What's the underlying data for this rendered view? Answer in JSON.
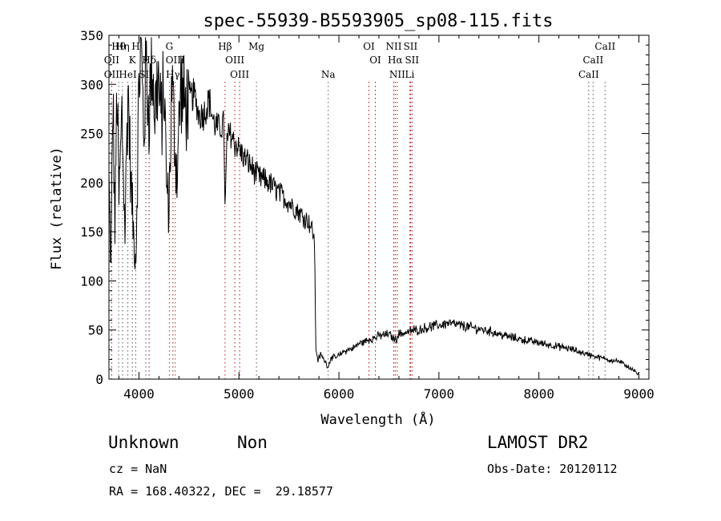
{
  "chart_data": {
    "type": "line",
    "title": "spec-55939-B5593905_sp08-115.fits",
    "xlabel": "Wavelength (Å)",
    "ylabel": "Flux (relative)",
    "xlim": [
      3700,
      9100
    ],
    "ylim": [
      0,
      350
    ],
    "xticks": [
      4000,
      5000,
      6000,
      7000,
      8000,
      9000
    ],
    "yticks": [
      0,
      50,
      100,
      150,
      200,
      250,
      300,
      350
    ],
    "grid": false,
    "spectrum_points": [
      [
        3700,
        200
      ],
      [
        3720,
        110
      ],
      [
        3740,
        290
      ],
      [
        3760,
        150
      ],
      [
        3780,
        300
      ],
      [
        3800,
        180
      ],
      [
        3830,
        270
      ],
      [
        3860,
        150
      ],
      [
        3890,
        300
      ],
      [
        3920,
        200
      ],
      [
        3950,
        140
      ],
      [
        3970,
        125
      ],
      [
        4000,
        300
      ],
      [
        4020,
        340
      ],
      [
        4050,
        250
      ],
      [
        4070,
        320
      ],
      [
        4100,
        270
      ],
      [
        4130,
        330
      ],
      [
        4160,
        270
      ],
      [
        4190,
        310
      ],
      [
        4220,
        260
      ],
      [
        4250,
        300
      ],
      [
        4280,
        190
      ],
      [
        4300,
        175
      ],
      [
        4330,
        300
      ],
      [
        4360,
        240
      ],
      [
        4380,
        210
      ],
      [
        4420,
        300
      ],
      [
        4460,
        275
      ],
      [
        4500,
        285
      ],
      [
        4550,
        290
      ],
      [
        4600,
        270
      ],
      [
        4650,
        270
      ],
      [
        4700,
        285
      ],
      [
        4750,
        260
      ],
      [
        4800,
        255
      ],
      [
        4850,
        260
      ],
      [
        4861,
        165
      ],
      [
        4880,
        245
      ],
      [
        4920,
        250
      ],
      [
        4960,
        240
      ],
      [
        5000,
        235
      ],
      [
        5050,
        225
      ],
      [
        5100,
        220
      ],
      [
        5150,
        212
      ],
      [
        5200,
        205
      ],
      [
        5250,
        203
      ],
      [
        5300,
        200
      ],
      [
        5350,
        195
      ],
      [
        5400,
        190
      ],
      [
        5450,
        185
      ],
      [
        5500,
        180
      ],
      [
        5550,
        175
      ],
      [
        5600,
        170
      ],
      [
        5650,
        165
      ],
      [
        5700,
        160
      ],
      [
        5740,
        150
      ],
      [
        5755,
        140
      ],
      [
        5762,
        90
      ],
      [
        5770,
        30
      ],
      [
        5790,
        20
      ],
      [
        5820,
        25
      ],
      [
        5850,
        20
      ],
      [
        5892,
        12
      ],
      [
        5920,
        22
      ],
      [
        5960,
        22
      ],
      [
        6000,
        24
      ],
      [
        6050,
        28
      ],
      [
        6100,
        30
      ],
      [
        6150,
        32
      ],
      [
        6200,
        36
      ],
      [
        6250,
        38
      ],
      [
        6300,
        40
      ],
      [
        6350,
        42
      ],
      [
        6400,
        44
      ],
      [
        6450,
        45
      ],
      [
        6500,
        46
      ],
      [
        6563,
        40
      ],
      [
        6600,
        46
      ],
      [
        6650,
        47
      ],
      [
        6700,
        48
      ],
      [
        6750,
        50
      ],
      [
        6800,
        50
      ],
      [
        6850,
        52
      ],
      [
        6900,
        53
      ],
      [
        6950,
        54
      ],
      [
        7000,
        55
      ],
      [
        7050,
        56
      ],
      [
        7100,
        57
      ],
      [
        7150,
        56
      ],
      [
        7200,
        55
      ],
      [
        7300,
        53
      ],
      [
        7400,
        51
      ],
      [
        7500,
        49
      ],
      [
        7600,
        46
      ],
      [
        7700,
        43
      ],
      [
        7800,
        41
      ],
      [
        7900,
        39
      ],
      [
        8000,
        37
      ],
      [
        8100,
        35
      ],
      [
        8200,
        33
      ],
      [
        8300,
        31
      ],
      [
        8400,
        28
      ],
      [
        8500,
        25
      ],
      [
        8600,
        22
      ],
      [
        8700,
        20
      ],
      [
        8800,
        18
      ],
      [
        8900,
        12
      ],
      [
        9000,
        4
      ]
    ],
    "line_labels": [
      {
        "label": "Hθ",
        "x": 3797,
        "row": 0
      },
      {
        "label": "Hη",
        "x": 3835,
        "row": 0
      },
      {
        "label": "H",
        "x": 3968,
        "row": 0
      },
      {
        "label": "G",
        "x": 4304,
        "row": 0
      },
      {
        "label": "Hβ",
        "x": 4861,
        "row": 0
      },
      {
        "label": "Mg",
        "x": 5175,
        "row": 0
      },
      {
        "label": "OI",
        "x": 6300,
        "row": 0
      },
      {
        "label": "NII",
        "x": 6548,
        "row": 0
      },
      {
        "label": "SII",
        "x": 6716,
        "row": 0
      },
      {
        "label": "CaII",
        "x": 8662,
        "row": 0
      },
      {
        "label": "OII",
        "x": 3727,
        "row": 1
      },
      {
        "label": "K",
        "x": 3934,
        "row": 1
      },
      {
        "label": "Hδ",
        "x": 4102,
        "row": 1
      },
      {
        "label": "OIII",
        "x": 4363,
        "row": 1
      },
      {
        "label": "OIII",
        "x": 4959,
        "row": 1
      },
      {
        "label": "OI",
        "x": 6364,
        "row": 1
      },
      {
        "label": "Hα",
        "x": 6563,
        "row": 1
      },
      {
        "label": "SII",
        "x": 6731,
        "row": 1
      },
      {
        "label": "CaII",
        "x": 8542,
        "row": 1
      },
      {
        "label": "OII",
        "x": 3727,
        "row": 2
      },
      {
        "label": "HeI",
        "x": 3889,
        "row": 2
      },
      {
        "label": "SII",
        "x": 4069,
        "row": 2
      },
      {
        "label": "Hγ",
        "x": 4340,
        "row": 2
      },
      {
        "label": "OIII",
        "x": 5007,
        "row": 2
      },
      {
        "label": "Na",
        "x": 5893,
        "row": 2
      },
      {
        "label": "NII",
        "x": 6583,
        "row": 2
      },
      {
        "label": "Li",
        "x": 6708,
        "row": 2
      },
      {
        "label": "CaII",
        "x": 8498,
        "row": 2
      }
    ],
    "line_colors": {
      "axes": "#000000",
      "spectrum": "#000000",
      "emission_marker": "#cc0000",
      "absorption_marker": "#555555"
    }
  },
  "info": {
    "class": "Unknown",
    "subclass": "Non",
    "survey": "LAMOST DR2",
    "cz": "cz = NaN",
    "obs_date": "Obs-Date: 20120112",
    "coords": "RA = 168.40322, DEC =  29.18577"
  }
}
